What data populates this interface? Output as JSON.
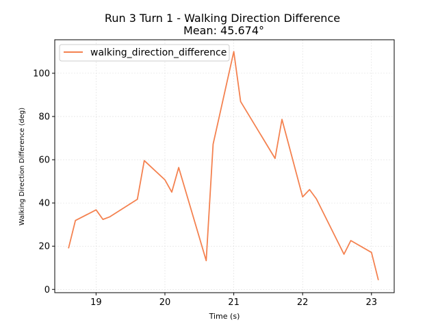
{
  "chart_data": {
    "type": "line",
    "title": "Run 3 Turn 1 - Walking Direction Difference",
    "subtitle": "Mean: 45.674°",
    "xlabel": "Time (s)",
    "ylabel": "Walking Direction Difference (deg)",
    "xlim": [
      18.4,
      23.33
    ],
    "ylim": [
      -1.5,
      115.5
    ],
    "xticks": [
      19,
      20,
      21,
      22,
      23
    ],
    "yticks": [
      0,
      20,
      40,
      60,
      80,
      100
    ],
    "grid": true,
    "legend_position": "top-left",
    "series": [
      {
        "name": "walking_direction_difference",
        "color": "#f4814f",
        "x": [
          18.6,
          18.7,
          19.0,
          19.1,
          19.2,
          19.6,
          19.7,
          20.0,
          20.1,
          20.2,
          20.6,
          20.7,
          21.0,
          21.1,
          21.6,
          21.7,
          22.0,
          22.1,
          22.2,
          22.6,
          22.7,
          23.0,
          23.1
        ],
        "y": [
          19.0,
          31.9,
          36.8,
          32.4,
          33.6,
          41.7,
          59.6,
          50.7,
          45.0,
          56.4,
          13.3,
          67.2,
          110.0,
          86.9,
          60.6,
          78.7,
          42.8,
          46.2,
          41.9,
          16.3,
          22.6,
          17.1,
          4.3
        ]
      }
    ]
  }
}
